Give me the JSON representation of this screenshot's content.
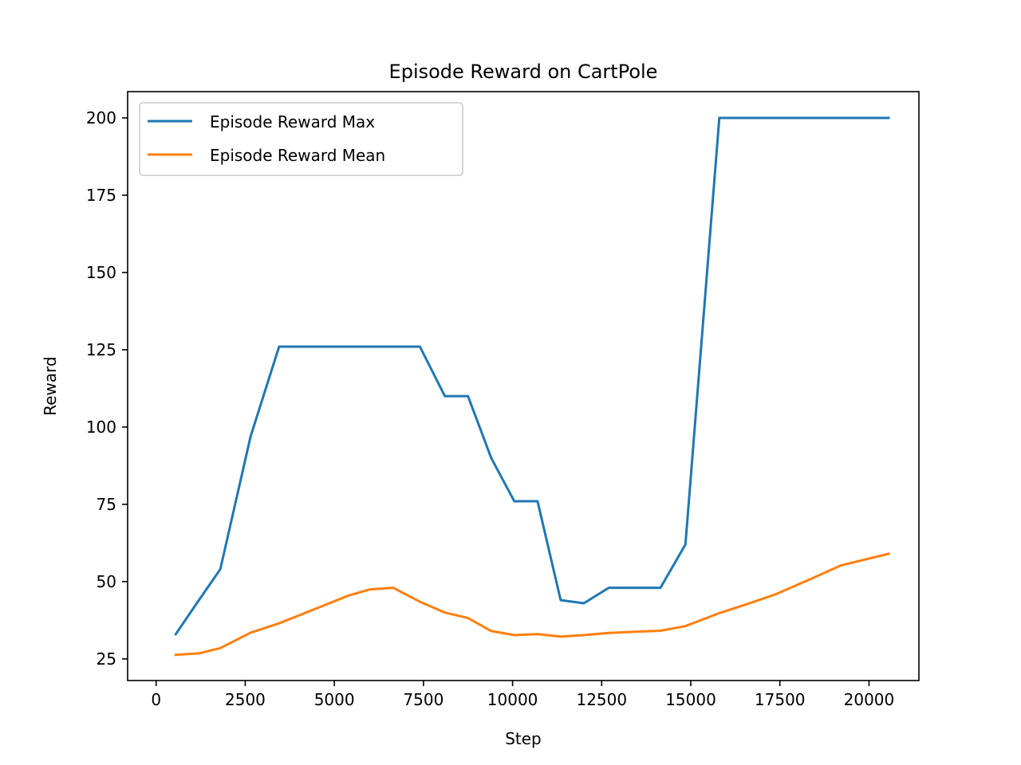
{
  "chart_data": {
    "type": "line",
    "title": "Episode Reward on CartPole",
    "xlabel": "Step",
    "ylabel": "Reward",
    "xlim": [
      -800,
      21400
    ],
    "ylim": [
      18,
      208.5
    ],
    "xticks": [
      0,
      2500,
      5000,
      7500,
      10000,
      12500,
      15000,
      17500,
      20000
    ],
    "yticks": [
      25,
      50,
      75,
      100,
      125,
      150,
      175,
      200
    ],
    "grid": false,
    "legend_position": "upper-left",
    "series": [
      {
        "name": "Episode Reward Max",
        "color": "#1f77b4",
        "x": [
          550,
          1200,
          1800,
          2650,
          3450,
          4100,
          4750,
          5400,
          6000,
          6650,
          7400,
          8100,
          8750,
          9400,
          10050,
          10700,
          11350,
          12000,
          12700,
          13450,
          14150,
          14850,
          15800,
          16600,
          17400,
          18300,
          19200,
          20550
        ],
        "y": [
          33,
          44,
          54,
          97,
          126,
          126,
          126,
          126,
          126,
          126,
          126,
          110,
          110,
          90,
          76,
          76,
          44,
          43,
          48,
          48,
          48,
          62,
          200,
          200,
          200,
          200,
          200,
          200
        ]
      },
      {
        "name": "Episode Reward Mean",
        "color": "#ff7f0e",
        "x": [
          550,
          1200,
          1800,
          2650,
          3450,
          4100,
          4750,
          5400,
          6000,
          6650,
          7400,
          8100,
          8750,
          9400,
          10050,
          10700,
          11350,
          12000,
          12700,
          13450,
          14150,
          14850,
          15800,
          16600,
          17400,
          18300,
          19200,
          20550
        ],
        "y": [
          26.3,
          26.8,
          28.5,
          33.5,
          36.5,
          39.5,
          42.5,
          45.5,
          47.5,
          48,
          43.5,
          40,
          38.2,
          34,
          32.7,
          33,
          32.2,
          32.7,
          33.4,
          33.8,
          34.1,
          35.6,
          39.8,
          42.8,
          46,
          50.5,
          55.2,
          59
        ]
      }
    ]
  }
}
